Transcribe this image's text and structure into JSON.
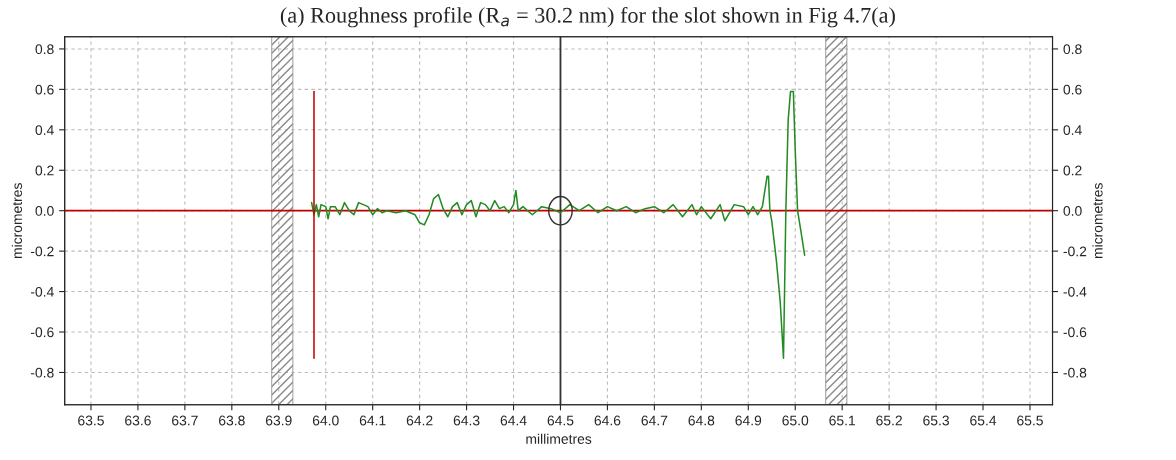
{
  "chart_data": {
    "type": "line",
    "title": "(a) Roughness profile (R$_{a}$ = 30.2 nm) for the slot shown in Fig 4.7(a)",
    "xlabel": "millimetres",
    "ylabel": "micrometres",
    "y2label": "micrometres",
    "series": [
      {
        "color": "#228b22",
        "x": [
          63.97,
          63.975,
          63.98,
          63.985,
          63.99,
          64.0,
          64.005,
          64.01,
          64.02,
          64.03,
          64.04,
          64.05,
          64.06,
          64.07,
          64.08,
          64.09,
          64.1,
          64.11,
          64.12,
          64.13,
          64.15,
          64.17,
          64.19,
          64.2,
          64.21,
          64.22,
          64.23,
          64.24,
          64.25,
          64.26,
          64.27,
          64.28,
          64.29,
          64.3,
          64.31,
          64.32,
          64.33,
          64.34,
          64.35,
          64.36,
          64.37,
          64.38,
          64.39,
          64.4,
          64.405,
          64.41,
          64.42,
          64.44,
          64.46,
          64.48,
          64.5,
          64.52,
          64.54,
          64.56,
          64.58,
          64.6,
          64.62,
          64.64,
          64.66,
          64.68,
          64.7,
          64.72,
          64.74,
          64.76,
          64.78,
          64.79,
          64.8,
          64.82,
          64.84,
          64.85,
          64.87,
          64.89,
          64.9,
          64.91,
          64.92,
          64.93,
          64.94,
          64.943,
          64.946,
          64.95,
          64.96,
          64.968,
          64.975,
          64.98,
          64.985,
          64.99,
          64.996,
          65.0,
          65.005,
          65.012,
          65.02
        ],
        "values": [
          0.04,
          -0.02,
          0.03,
          -0.03,
          0.03,
          0.02,
          -0.04,
          0.02,
          0.02,
          -0.02,
          0.04,
          0.0,
          -0.02,
          0.04,
          0.03,
          0.02,
          -0.02,
          0.01,
          -0.01,
          0.0,
          -0.01,
          0.0,
          -0.02,
          -0.06,
          -0.07,
          -0.02,
          0.06,
          0.08,
          0.01,
          -0.03,
          0.02,
          0.04,
          -0.02,
          0.03,
          0.05,
          -0.03,
          0.04,
          0.03,
          0.0,
          0.05,
          0.01,
          0.02,
          -0.01,
          0.03,
          0.1,
          0.0,
          0.02,
          -0.02,
          0.02,
          0.01,
          -0.01,
          0.03,
          0.0,
          0.03,
          -0.01,
          0.02,
          0.0,
          0.02,
          -0.01,
          0.01,
          0.02,
          -0.01,
          0.03,
          -0.03,
          0.03,
          -0.02,
          0.02,
          -0.04,
          0.03,
          -0.05,
          0.03,
          0.02,
          -0.02,
          0.02,
          -0.02,
          0.02,
          0.17,
          0.17,
          0.0,
          -0.05,
          -0.25,
          -0.45,
          -0.73,
          0.0,
          0.45,
          0.59,
          0.59,
          0.3,
          0.0,
          -0.1,
          -0.22
        ]
      },
      {
        "color": "#c00000",
        "x": [
          63.975,
          63.975
        ],
        "values": [
          -0.73,
          0.59
        ]
      }
    ],
    "ref_lines": [
      {
        "axis": "y",
        "value": 0,
        "color": "#c00000",
        "line_style": "solid"
      },
      {
        "axis": "x",
        "value": 64.5,
        "color": "#333333",
        "line_style": "solid"
      }
    ],
    "bands": [
      {
        "axis": "x",
        "from": 63.885,
        "to": 63.93,
        "color": "#888888"
      },
      {
        "axis": "x",
        "from": 65.065,
        "to": 65.11,
        "color": "#888888"
      }
    ],
    "xlim": [
      63.444,
      65.548
    ],
    "ylim": [
      -0.96,
      0.86
    ],
    "y2lim": [
      -0.96,
      0.86
    ],
    "xticks": [
      63.5,
      63.6,
      63.7,
      63.8,
      63.9,
      {
        "value": 64,
        "label": "64.0"
      },
      64.1,
      64.2,
      64.3,
      64.4,
      64.5,
      64.6,
      64.7,
      64.8,
      64.9,
      {
        "value": 65,
        "label": "65.0"
      },
      65.1,
      65.2,
      65.3,
      65.4,
      65.5
    ],
    "yticks": [
      -0.8,
      -0.6,
      -0.4,
      -0.2,
      {
        "value": 0,
        "label": "0.0"
      },
      0.2,
      0.4,
      0.6,
      0.8
    ],
    "y2ticks": [
      -0.8,
      -0.6,
      -0.4,
      -0.2,
      {
        "value": 0,
        "label": "0.0"
      },
      0.2,
      0.4,
      0.6,
      0.8
    ],
    "grid": true,
    "line_style": "solid"
  }
}
